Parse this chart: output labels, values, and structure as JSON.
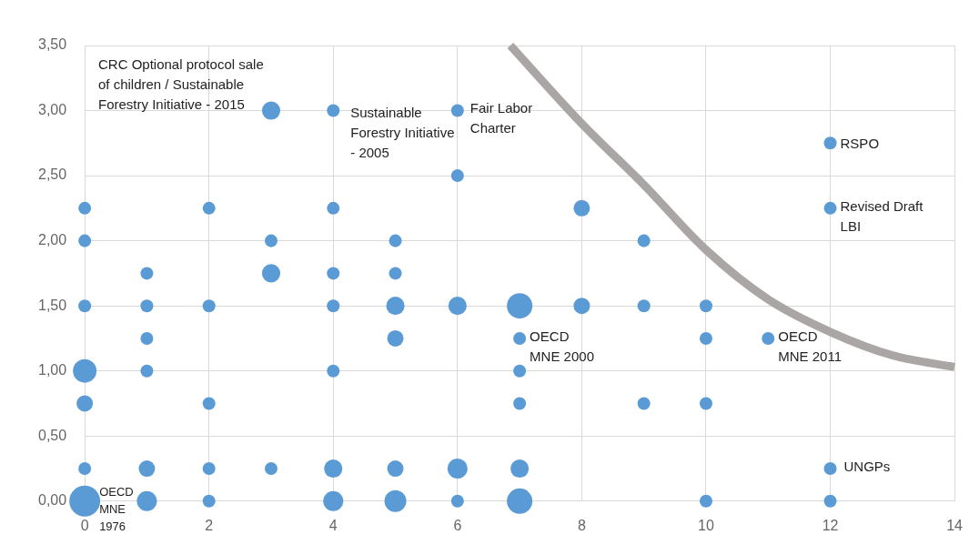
{
  "chart_data": {
    "type": "bubble",
    "grid": true,
    "xlim": [
      0,
      14
    ],
    "xticks": [
      0,
      2,
      4,
      6,
      8,
      10,
      12,
      14
    ],
    "ylim": [
      0,
      3.5
    ],
    "yticks": [
      {
        "value": 0,
        "label": "0,00"
      },
      {
        "value": 0.5,
        "label": "0,50"
      },
      {
        "value": 1,
        "label": "1,00"
      },
      {
        "value": 1.5,
        "label": "1,50"
      },
      {
        "value": 2,
        "label": "2,00"
      },
      {
        "value": 2.5,
        "label": "2,50"
      },
      {
        "value": 3,
        "label": "3,00"
      },
      {
        "value": 3.5,
        "label": "3,50"
      }
    ],
    "series": [
      {
        "color": "#5b9bd5",
        "x": [
          0,
          0,
          0,
          0,
          0,
          0,
          0,
          1,
          1,
          1,
          1,
          1,
          1,
          2,
          2,
          2,
          2,
          2,
          3,
          3,
          3,
          3,
          4,
          4,
          4,
          4,
          4,
          4,
          4,
          5,
          5,
          5,
          5,
          5,
          5,
          6,
          6,
          6,
          6,
          6,
          7,
          7,
          7,
          7,
          7,
          7,
          8,
          8,
          9,
          9,
          9,
          10,
          10,
          10,
          10,
          11,
          12,
          12,
          12,
          12
        ],
        "values": [
          2.25,
          2,
          1.5,
          1,
          0.75,
          0.25,
          0,
          1.75,
          1.5,
          1.25,
          1,
          0.25,
          0,
          2.25,
          1.5,
          0.75,
          0.25,
          0,
          3,
          2,
          1.75,
          0.25,
          3,
          2.25,
          1.75,
          1.5,
          1,
          0.25,
          0,
          2,
          1.75,
          1.5,
          1.25,
          0.25,
          0,
          3,
          2.5,
          1.5,
          0.25,
          0,
          1.5,
          1.25,
          1,
          0.75,
          0.25,
          0,
          2.25,
          1.5,
          2,
          1.5,
          0.75,
          1.5,
          1.25,
          0.75,
          0,
          1.25,
          2.75,
          2.25,
          0.25,
          0
        ],
        "sizes": [
          0.17,
          0.17,
          0.17,
          0.58,
          0.28,
          0.17,
          1,
          0.17,
          0.17,
          0.17,
          0.17,
          0.28,
          0.42,
          0.17,
          0.17,
          0.17,
          0.17,
          0.17,
          0.35,
          0.17,
          0.35,
          0.17,
          0.17,
          0.17,
          0.17,
          0.17,
          0.17,
          0.35,
          0.42,
          0.17,
          0.17,
          0.35,
          0.28,
          0.28,
          0.5,
          0.17,
          0.17,
          0.35,
          0.42,
          0.17,
          0.68,
          0.17,
          0.17,
          0.17,
          0.35,
          0.68,
          0.28,
          0.28,
          0.17,
          0.17,
          0.17,
          0.17,
          0.17,
          0.17,
          0.17,
          0.17,
          0.17,
          0.17,
          0.17,
          0.17
        ]
      },
      {
        "type": "line",
        "color": "#aaa6a6",
        "x": [
          6.85,
          8,
          9,
          10,
          11,
          12,
          13,
          14
        ],
        "values": [
          3.5,
          2.9,
          2.43,
          1.93,
          1.55,
          1.3,
          1.12,
          1.03
        ]
      }
    ],
    "annotations": [
      {
        "text": "CRC Optional protocol sale of children / Sustainable Forestry Initiative - 2015",
        "x": 3,
        "y": 3
      },
      {
        "text": "Sustainable Forestry Initiative - 2005",
        "x": 4,
        "y": 3
      },
      {
        "text": "Fair Labor Charter",
        "x": 6,
        "y": 3
      },
      {
        "text": "RSPO",
        "x": 12,
        "y": 2.75
      },
      {
        "text": "Revised Draft LBI",
        "x": 12,
        "y": 2.25
      },
      {
        "text": "OECD MNE 2000",
        "x": 7,
        "y": 1.25
      },
      {
        "text": "OECD MNE 2011",
        "x": 11,
        "y": 1.25
      },
      {
        "text": "UNGPs",
        "x": 12,
        "y": 0.25
      },
      {
        "text": "OECD MNE 1976",
        "x": 0,
        "y": 0
      }
    ]
  }
}
